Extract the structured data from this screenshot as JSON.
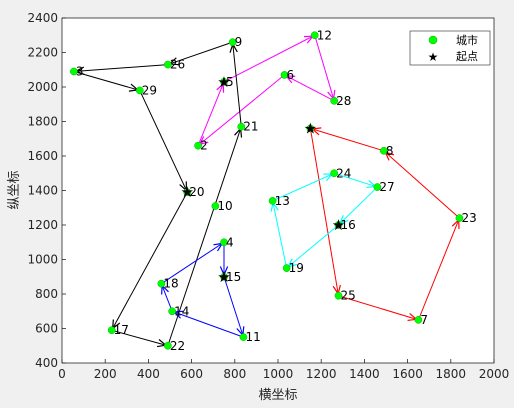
{
  "chart_data": {
    "type": "scatter",
    "xlabel": "横坐标",
    "ylabel": "纵坐标",
    "xlim": [
      0,
      2000
    ],
    "ylim": [
      400,
      2400
    ],
    "xticks": [
      "0",
      "200",
      "400",
      "600",
      "800",
      "1000",
      "1200",
      "1400",
      "1600",
      "1800",
      "2000"
    ],
    "yticks": [
      "400",
      "600",
      "800",
      "1000",
      "1200",
      "1400",
      "1600",
      "1800",
      "2000",
      "2200",
      "2400"
    ],
    "grid": false,
    "legend": {
      "placement": "top-right",
      "entries": [
        {
          "label": "城市",
          "marker": "green-circle"
        },
        {
          "label": "起点",
          "marker": "black-star"
        }
      ]
    },
    "cities": [
      {
        "id": "2",
        "x": 630,
        "y": 1660
      },
      {
        "id": "3",
        "x": 55,
        "y": 2090
      },
      {
        "id": "4",
        "x": 750,
        "y": 1100
      },
      {
        "id": "5",
        "x": 750,
        "y": 2030
      },
      {
        "id": "6",
        "x": 1030,
        "y": 2070
      },
      {
        "id": "7",
        "x": 1650,
        "y": 650
      },
      {
        "id": "8",
        "x": 1490,
        "y": 1630
      },
      {
        "id": "9",
        "x": 790,
        "y": 2260
      },
      {
        "id": "10",
        "x": 710,
        "y": 1310
      },
      {
        "id": "11",
        "x": 840,
        "y": 550
      },
      {
        "id": "12",
        "x": 1170,
        "y": 2300
      },
      {
        "id": "13",
        "x": 975,
        "y": 1340
      },
      {
        "id": "14",
        "x": 510,
        "y": 700
      },
      {
        "id": "15",
        "x": 750,
        "y": 900
      },
      {
        "id": "16",
        "x": 1280,
        "y": 1200
      },
      {
        "id": "17",
        "x": 230,
        "y": 590
      },
      {
        "id": "18",
        "x": 460,
        "y": 860
      },
      {
        "id": "19",
        "x": 1040,
        "y": 950
      },
      {
        "id": "20",
        "x": 580,
        "y": 1390
      },
      {
        "id": "21",
        "x": 830,
        "y": 1770
      },
      {
        "id": "22",
        "x": 490,
        "y": 500
      },
      {
        "id": "23",
        "x": 1840,
        "y": 1240
      },
      {
        "id": "24",
        "x": 1260,
        "y": 1500
      },
      {
        "id": "25",
        "x": 1280,
        "y": 790
      },
      {
        "id": "26",
        "x": 490,
        "y": 2130
      },
      {
        "id": "27",
        "x": 1460,
        "y": 1420
      },
      {
        "id": "28",
        "x": 1260,
        "y": 1920
      },
      {
        "id": "29",
        "x": 360,
        "y": 1980
      },
      {
        "id": "",
        "x": 1150,
        "y": 1760
      }
    ],
    "start_points": [
      {
        "x": 1150,
        "y": 1760
      },
      {
        "x": 750,
        "y": 2030
      },
      {
        "x": 580,
        "y": 1390
      },
      {
        "x": 1280,
        "y": 1200
      },
      {
        "x": 750,
        "y": 900
      }
    ],
    "routes": [
      {
        "color": "#ff0000",
        "path": [
          [
            1150,
            1760
          ],
          [
            1280,
            790
          ],
          [
            1650,
            650
          ],
          [
            1840,
            1240
          ],
          [
            1490,
            1630
          ],
          [
            1150,
            1760
          ]
        ]
      },
      {
        "color": "#ff00ff",
        "path": [
          [
            750,
            2030
          ],
          [
            1170,
            2300
          ],
          [
            1260,
            1920
          ],
          [
            1030,
            2070
          ],
          [
            630,
            1660
          ],
          [
            750,
            2030
          ]
        ]
      },
      {
        "color": "#000000",
        "path": [
          [
            580,
            1390
          ],
          [
            230,
            590
          ],
          [
            490,
            500
          ],
          [
            830,
            1770
          ],
          [
            790,
            2260
          ],
          [
            490,
            2130
          ],
          [
            55,
            2090
          ],
          [
            360,
            1980
          ],
          [
            580,
            1390
          ]
        ]
      },
      {
        "color": "#00ffff",
        "path": [
          [
            1280,
            1200
          ],
          [
            1040,
            950
          ],
          [
            975,
            1340
          ],
          [
            1260,
            1500
          ],
          [
            1460,
            1420
          ],
          [
            1280,
            1200
          ]
        ]
      },
      {
        "color": "#0000ff",
        "path": [
          [
            750,
            900
          ],
          [
            840,
            550
          ],
          [
            510,
            700
          ],
          [
            460,
            860
          ],
          [
            750,
            1100
          ],
          [
            750,
            900
          ]
        ]
      }
    ]
  }
}
